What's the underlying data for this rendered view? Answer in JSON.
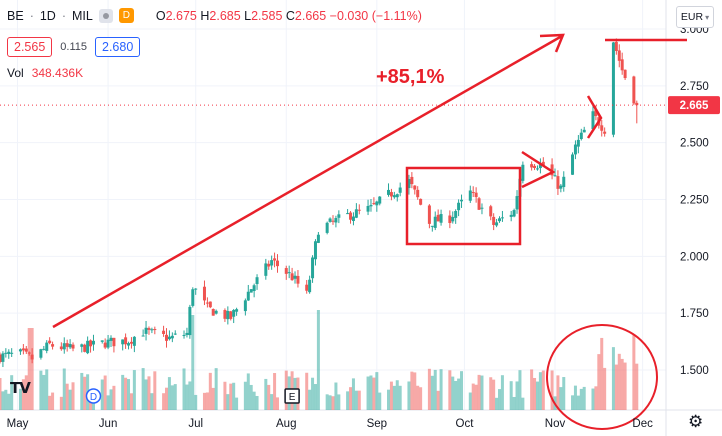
{
  "header": {
    "symbol": "BE",
    "interval": "1D",
    "exchange": "MIL",
    "data_badge": "D",
    "ohlc": {
      "o_label": "O",
      "o": "2.675",
      "h_label": "H",
      "h": "2.685",
      "l_label": "L",
      "l": "2.585",
      "c_label": "C",
      "c": "2.665",
      "change": "−0.030 (−1.11%)"
    }
  },
  "quote": {
    "bid": "2.565",
    "spread": "0.115",
    "ask": "2.680"
  },
  "volume": {
    "label": "Vol",
    "value": "348.436K"
  },
  "currency": {
    "label": "EUR",
    "chevron": "chevron-down-icon"
  },
  "last_price": {
    "value": "2.665",
    "color": "#f23645"
  },
  "annotation": {
    "text": "+85,1%",
    "color": "#e8202a"
  },
  "markers": [
    {
      "label": "D",
      "date": "2022-05-27",
      "shape": "circle",
      "color": "#2962ff"
    },
    {
      "label": "E",
      "date": "2022-08-03",
      "shape": "square",
      "color": "#131722"
    }
  ],
  "logo": {
    "text": "TV"
  },
  "settings_icon": "gear-icon",
  "colors": {
    "up": "#26a69a",
    "down": "#ef5350",
    "drawing": "#e8202a",
    "grid": "#f0f3fa"
  },
  "chart_data": {
    "type": "candlestick",
    "x_axis": {
      "type": "time",
      "labels": [
        "May",
        "Jun",
        "Jul",
        "Aug",
        "Sep",
        "Oct",
        "Nov",
        "Dec"
      ],
      "range": [
        "2022-04-25",
        "2022-12-09"
      ]
    },
    "y_axis": {
      "position": "right",
      "ticks": [
        1.5,
        1.75,
        2.0,
        2.25,
        2.5,
        2.75,
        3.0
      ],
      "tick_labels": [
        "1.500",
        "1.750",
        "2.000",
        "2.250",
        "2.500",
        "2.750",
        "3.000"
      ],
      "range": [
        1.38,
        3.08
      ]
    },
    "grid": true,
    "anchors": [
      [
        "2022-04-25",
        1.56
      ],
      [
        "2022-05-02",
        1.57
      ],
      [
        "2022-05-06",
        1.55
      ],
      [
        "2022-05-12",
        1.61
      ],
      [
        "2022-05-20",
        1.59
      ],
      [
        "2022-05-31",
        1.62
      ],
      [
        "2022-06-08",
        1.63
      ],
      [
        "2022-06-13",
        1.67
      ],
      [
        "2022-06-22",
        1.64
      ],
      [
        "2022-06-28",
        1.66
      ],
      [
        "2022-06-30",
        1.87
      ],
      [
        "2022-07-05",
        1.77
      ],
      [
        "2022-07-13",
        1.73
      ],
      [
        "2022-07-20",
        1.86
      ],
      [
        "2022-07-27",
        1.98
      ],
      [
        "2022-08-03",
        1.91
      ],
      [
        "2022-08-08",
        1.83
      ],
      [
        "2022-08-12",
        2.12
      ],
      [
        "2022-08-22",
        2.18
      ],
      [
        "2022-08-30",
        2.21
      ],
      [
        "2022-09-05",
        2.27
      ],
      [
        "2022-09-12",
        2.33
      ],
      [
        "2022-09-19",
        2.15
      ],
      [
        "2022-09-26",
        2.17
      ],
      [
        "2022-10-03",
        2.28
      ],
      [
        "2022-10-11",
        2.14
      ],
      [
        "2022-10-18",
        2.2
      ],
      [
        "2022-10-21",
        2.42
      ],
      [
        "2022-10-28",
        2.4
      ],
      [
        "2022-11-03",
        2.3
      ],
      [
        "2022-11-08",
        2.48
      ],
      [
        "2022-11-14",
        2.62
      ],
      [
        "2022-11-18",
        2.56
      ],
      [
        "2022-11-21",
        2.95
      ],
      [
        "2022-11-24",
        2.82
      ],
      [
        "2022-11-29",
        2.665
      ]
    ]
  }
}
